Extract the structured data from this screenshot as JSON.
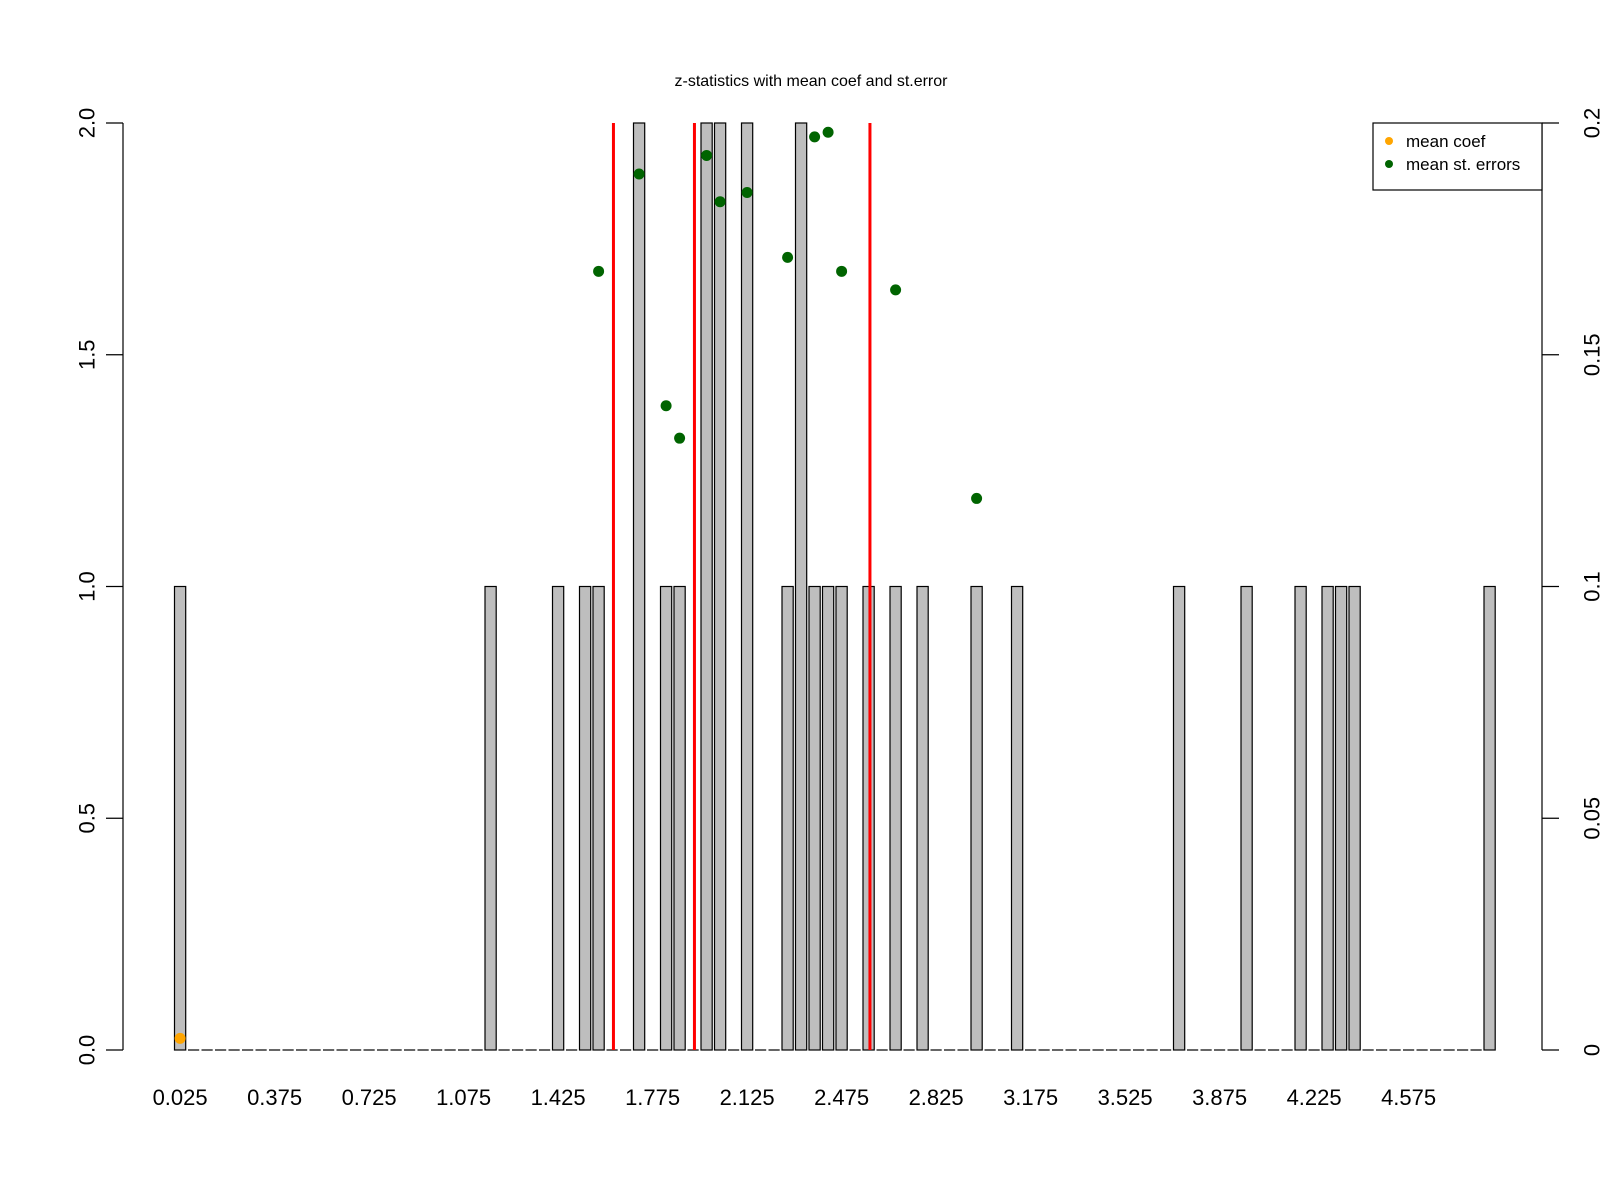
{
  "chart_data": {
    "type": "bar",
    "title": "z-statistics with mean coef and st.error",
    "xlabel": "",
    "ylabel": "",
    "x_tick_labels": [
      "0.025",
      "0.375",
      "0.725",
      "1.075",
      "1.425",
      "1.775",
      "2.125",
      "2.475",
      "2.825",
      "3.175",
      "3.525",
      "3.875",
      "4.225",
      "4.575"
    ],
    "left_axis": {
      "ylim": [
        0,
        2
      ],
      "ticks": [
        "0.0",
        "0.5",
        "1.0",
        "1.5",
        "2.0"
      ]
    },
    "right_axis": {
      "ylim": [
        0,
        0.2
      ],
      "ticks": [
        "0",
        "0.05",
        "0.1",
        "0.15",
        "0.2"
      ]
    },
    "bins": {
      "start": 0.025,
      "width": 0.05,
      "count": 98
    },
    "bars": [
      {
        "x": 0.025,
        "count": 1
      },
      {
        "x": 1.175,
        "count": 1
      },
      {
        "x": 1.425,
        "count": 1
      },
      {
        "x": 1.525,
        "count": 1
      },
      {
        "x": 1.575,
        "count": 1
      },
      {
        "x": 1.725,
        "count": 2
      },
      {
        "x": 1.825,
        "count": 1
      },
      {
        "x": 1.875,
        "count": 1
      },
      {
        "x": 1.975,
        "count": 2
      },
      {
        "x": 2.025,
        "count": 2
      },
      {
        "x": 2.125,
        "count": 2
      },
      {
        "x": 2.275,
        "count": 1
      },
      {
        "x": 2.325,
        "count": 2
      },
      {
        "x": 2.375,
        "count": 1
      },
      {
        "x": 2.425,
        "count": 1
      },
      {
        "x": 2.475,
        "count": 1
      },
      {
        "x": 2.575,
        "count": 1
      },
      {
        "x": 2.675,
        "count": 1
      },
      {
        "x": 2.775,
        "count": 1
      },
      {
        "x": 2.975,
        "count": 1
      },
      {
        "x": 3.125,
        "count": 1
      },
      {
        "x": 3.725,
        "count": 1
      },
      {
        "x": 3.975,
        "count": 1
      },
      {
        "x": 4.175,
        "count": 1
      },
      {
        "x": 4.275,
        "count": 1
      },
      {
        "x": 4.325,
        "count": 1
      },
      {
        "x": 4.375,
        "count": 1
      },
      {
        "x": 4.875,
        "count": 1
      }
    ],
    "vertical_lines": [
      {
        "x": 1.63,
        "color": "#ff0000"
      },
      {
        "x": 1.93,
        "color": "#ff0000"
      },
      {
        "x": 2.58,
        "color": "#ff0000"
      }
    ],
    "series": [
      {
        "name": "mean coef",
        "color": "#ffa500",
        "axis": "right",
        "points": [
          {
            "x": 0.025,
            "y": 0.0025
          }
        ]
      },
      {
        "name": "mean st. errors",
        "color": "#006400",
        "axis": "right",
        "points": [
          {
            "x": 1.575,
            "y": 0.168
          },
          {
            "x": 1.725,
            "y": 0.189
          },
          {
            "x": 1.825,
            "y": 0.139
          },
          {
            "x": 1.875,
            "y": 0.132
          },
          {
            "x": 1.975,
            "y": 0.193
          },
          {
            "x": 2.025,
            "y": 0.183
          },
          {
            "x": 2.125,
            "y": 0.185
          },
          {
            "x": 2.275,
            "y": 0.171
          },
          {
            "x": 2.375,
            "y": 0.197
          },
          {
            "x": 2.425,
            "y": 0.198
          },
          {
            "x": 2.475,
            "y": 0.168
          },
          {
            "x": 2.675,
            "y": 0.164
          },
          {
            "x": 2.975,
            "y": 0.119
          }
        ]
      }
    ],
    "legend": {
      "placement": "top-right",
      "entries": [
        {
          "label": "mean coef",
          "color": "#ffa500"
        },
        {
          "label": "mean st. errors",
          "color": "#006400"
        }
      ]
    },
    "colors": {
      "bar_fill": "#bebebe",
      "bar_stroke": "#000000"
    }
  }
}
